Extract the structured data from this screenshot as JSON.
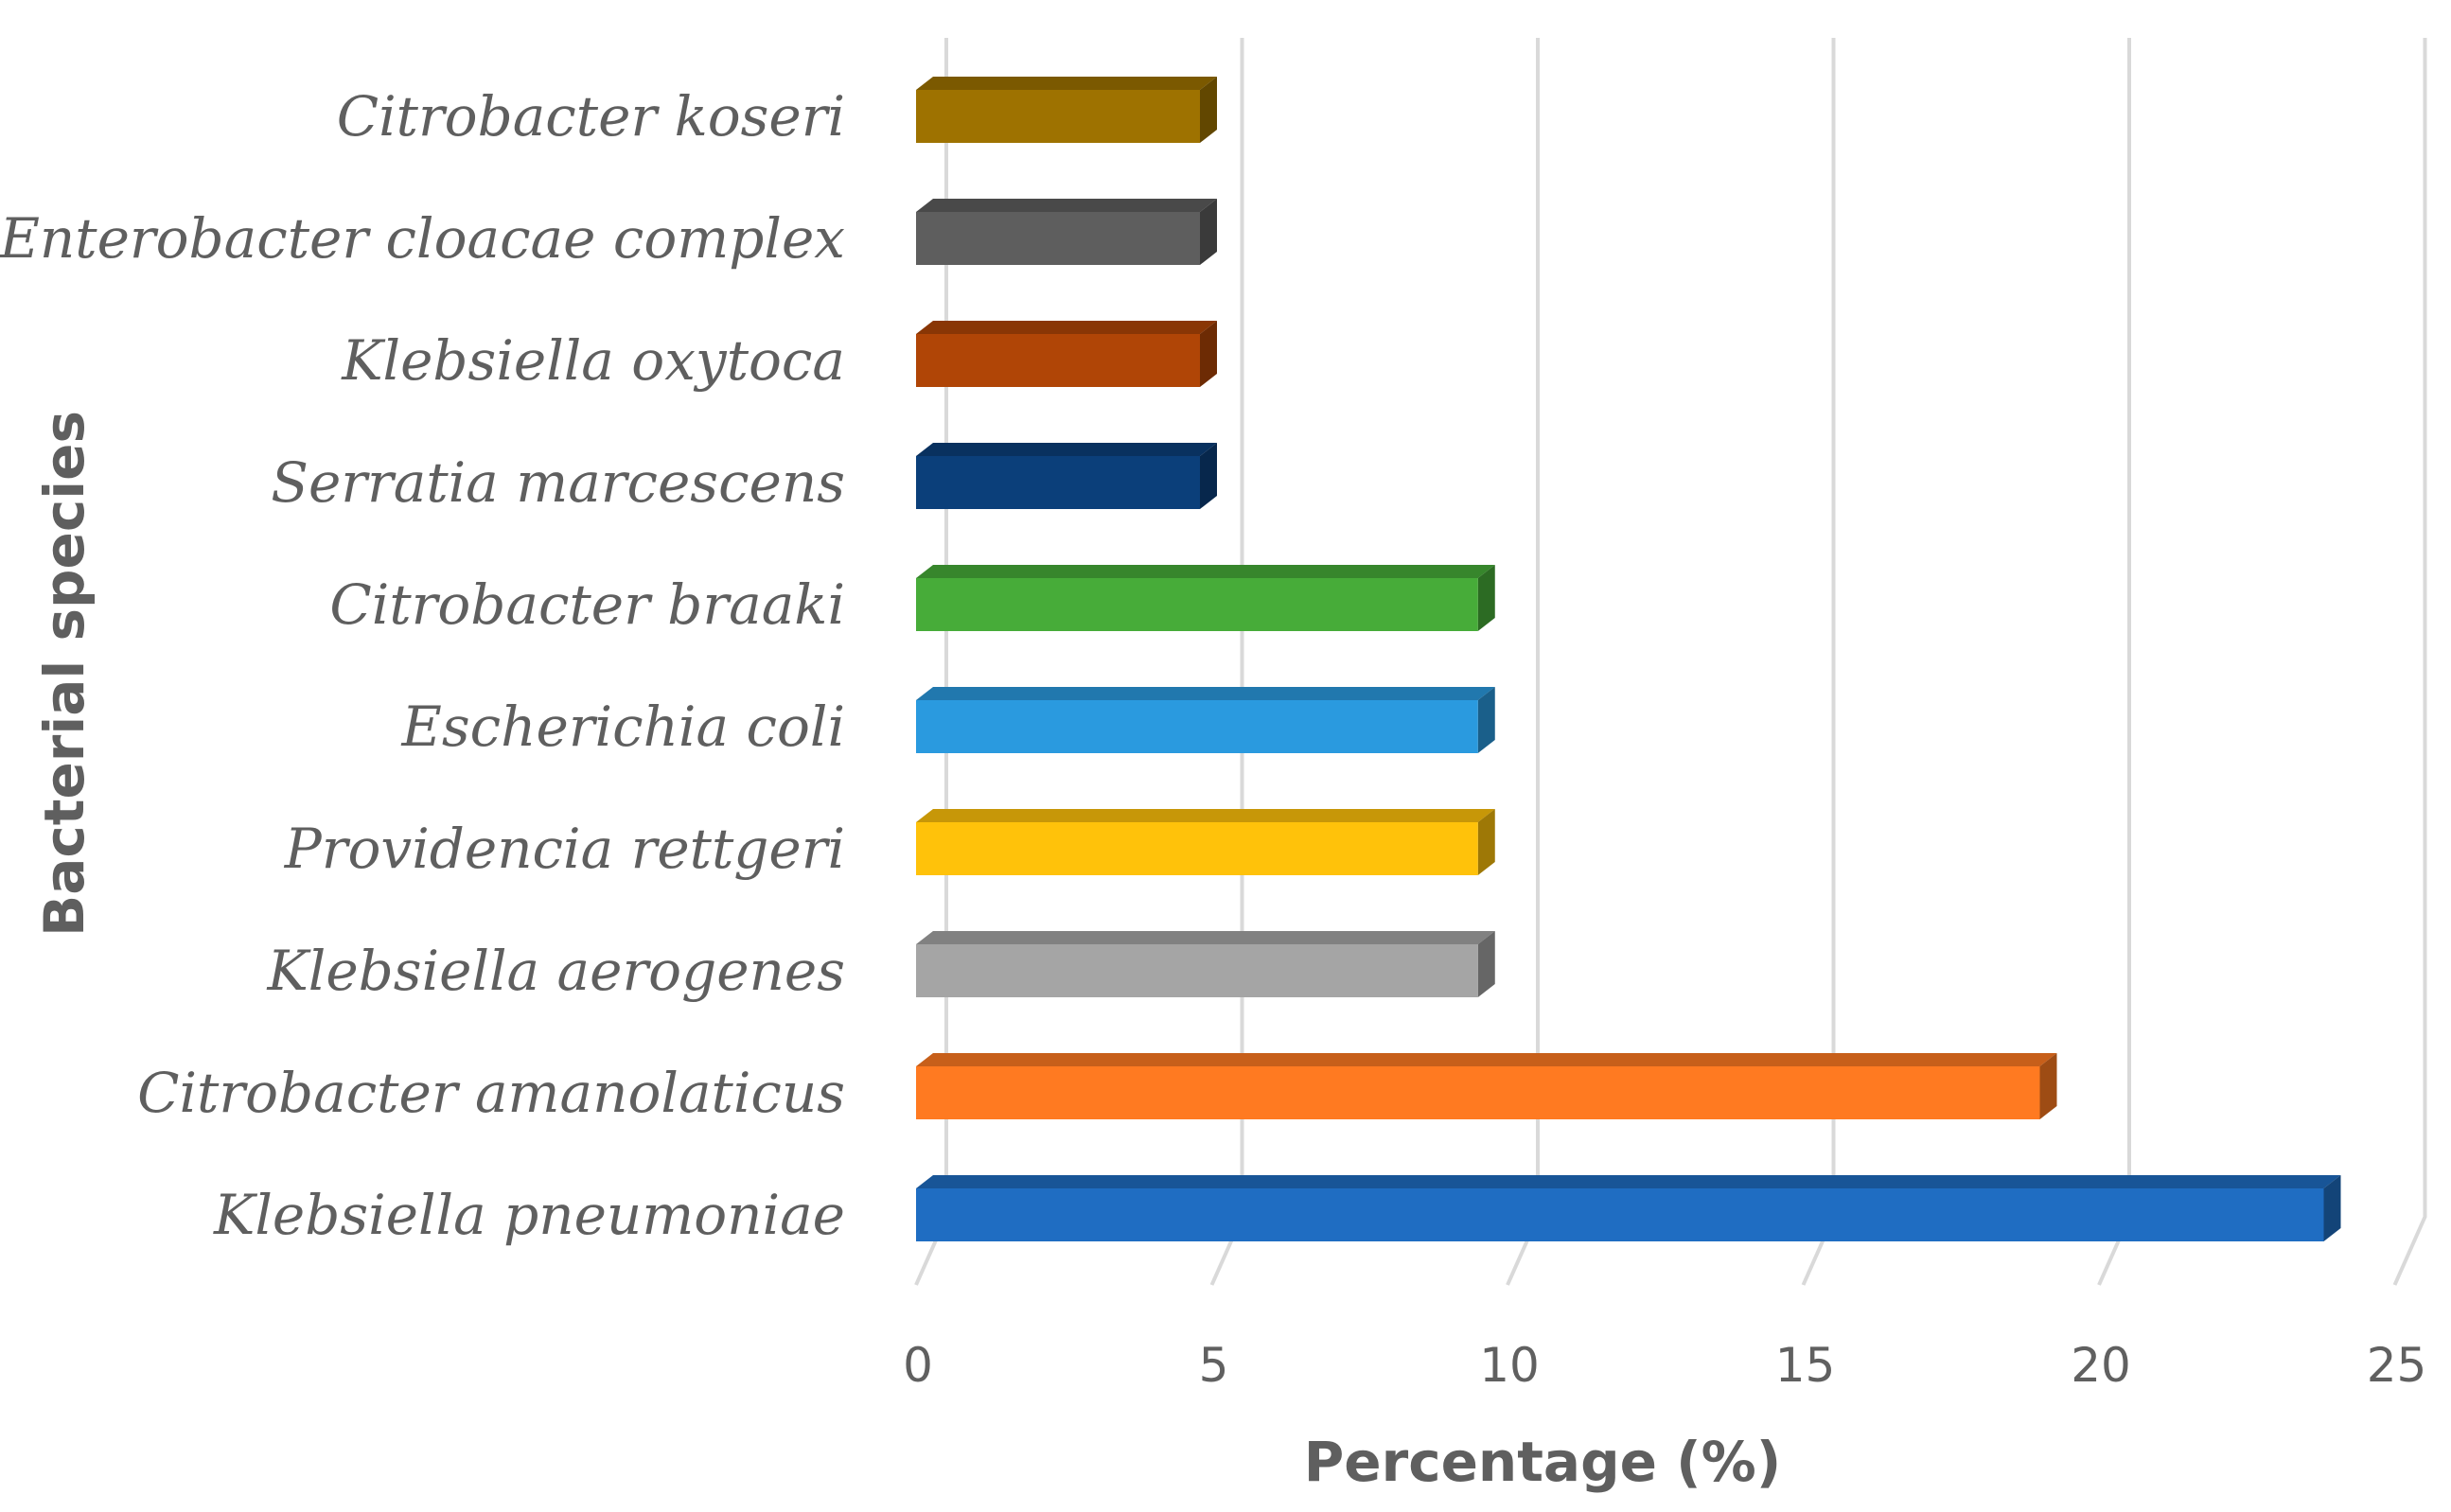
{
  "chart_data": {
    "type": "bar",
    "orientation": "horizontal",
    "style": "3d",
    "title": "",
    "xlabel": "Percentage (%)",
    "ylabel": "Bacterial species",
    "xlim": [
      0,
      25
    ],
    "xticks": [
      0,
      5,
      10,
      15,
      20,
      25
    ],
    "grid": true,
    "categories": [
      "Citrobacter koseri",
      "Enterobacter cloacae complex",
      "Klebsiella oxytoca",
      "Serratia marcescens",
      "Citrobacter braaki",
      "Escherichia coli",
      "Providencia rettgeri",
      "Klebsiella aerogenes",
      "Citrobacter amanolaticus",
      "Klebsiella pneumoniae"
    ],
    "values": [
      4.8,
      4.8,
      4.8,
      4.8,
      9.5,
      9.5,
      9.5,
      9.5,
      19.0,
      23.8
    ],
    "colors": [
      "#9E7200",
      "#5E5E5E",
      "#B04506",
      "#0B3F7A",
      "#47AC39",
      "#2A9ADF",
      "#FFC20A",
      "#A5A5A5",
      "#FF7A21",
      "#1F6DC2"
    ]
  }
}
